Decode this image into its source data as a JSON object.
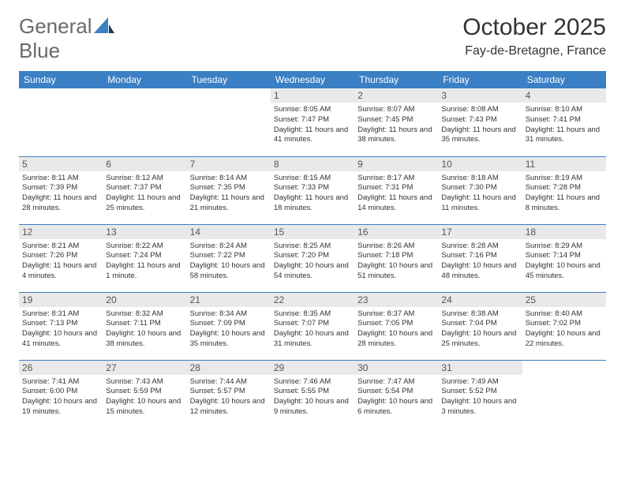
{
  "logo": {
    "word1": "General",
    "word2": "Blue"
  },
  "title": "October 2025",
  "location": "Fay-de-Bretagne, France",
  "colors": {
    "header_bar": "#3b7fc4",
    "daynum_bg": "#e9e9e9",
    "text": "#333333",
    "logo_gray": "#6a6a6a",
    "logo_blue": "#3b7fc4",
    "row_divider": "#3b7fc4"
  },
  "day_headers": [
    "Sunday",
    "Monday",
    "Tuesday",
    "Wednesday",
    "Thursday",
    "Friday",
    "Saturday"
  ],
  "weeks": [
    [
      {
        "n": "",
        "sr": "",
        "ss": "",
        "dl": ""
      },
      {
        "n": "",
        "sr": "",
        "ss": "",
        "dl": ""
      },
      {
        "n": "",
        "sr": "",
        "ss": "",
        "dl": ""
      },
      {
        "n": "1",
        "sr": "Sunrise: 8:05 AM",
        "ss": "Sunset: 7:47 PM",
        "dl": "Daylight: 11 hours and 41 minutes."
      },
      {
        "n": "2",
        "sr": "Sunrise: 8:07 AM",
        "ss": "Sunset: 7:45 PM",
        "dl": "Daylight: 11 hours and 38 minutes."
      },
      {
        "n": "3",
        "sr": "Sunrise: 8:08 AM",
        "ss": "Sunset: 7:43 PM",
        "dl": "Daylight: 11 hours and 35 minutes."
      },
      {
        "n": "4",
        "sr": "Sunrise: 8:10 AM",
        "ss": "Sunset: 7:41 PM",
        "dl": "Daylight: 11 hours and 31 minutes."
      }
    ],
    [
      {
        "n": "5",
        "sr": "Sunrise: 8:11 AM",
        "ss": "Sunset: 7:39 PM",
        "dl": "Daylight: 11 hours and 28 minutes."
      },
      {
        "n": "6",
        "sr": "Sunrise: 8:12 AM",
        "ss": "Sunset: 7:37 PM",
        "dl": "Daylight: 11 hours and 25 minutes."
      },
      {
        "n": "7",
        "sr": "Sunrise: 8:14 AM",
        "ss": "Sunset: 7:35 PM",
        "dl": "Daylight: 11 hours and 21 minutes."
      },
      {
        "n": "8",
        "sr": "Sunrise: 8:15 AM",
        "ss": "Sunset: 7:33 PM",
        "dl": "Daylight: 11 hours and 18 minutes."
      },
      {
        "n": "9",
        "sr": "Sunrise: 8:17 AM",
        "ss": "Sunset: 7:31 PM",
        "dl": "Daylight: 11 hours and 14 minutes."
      },
      {
        "n": "10",
        "sr": "Sunrise: 8:18 AM",
        "ss": "Sunset: 7:30 PM",
        "dl": "Daylight: 11 hours and 11 minutes."
      },
      {
        "n": "11",
        "sr": "Sunrise: 8:19 AM",
        "ss": "Sunset: 7:28 PM",
        "dl": "Daylight: 11 hours and 8 minutes."
      }
    ],
    [
      {
        "n": "12",
        "sr": "Sunrise: 8:21 AM",
        "ss": "Sunset: 7:26 PM",
        "dl": "Daylight: 11 hours and 4 minutes."
      },
      {
        "n": "13",
        "sr": "Sunrise: 8:22 AM",
        "ss": "Sunset: 7:24 PM",
        "dl": "Daylight: 11 hours and 1 minute."
      },
      {
        "n": "14",
        "sr": "Sunrise: 8:24 AM",
        "ss": "Sunset: 7:22 PM",
        "dl": "Daylight: 10 hours and 58 minutes."
      },
      {
        "n": "15",
        "sr": "Sunrise: 8:25 AM",
        "ss": "Sunset: 7:20 PM",
        "dl": "Daylight: 10 hours and 54 minutes."
      },
      {
        "n": "16",
        "sr": "Sunrise: 8:26 AM",
        "ss": "Sunset: 7:18 PM",
        "dl": "Daylight: 10 hours and 51 minutes."
      },
      {
        "n": "17",
        "sr": "Sunrise: 8:28 AM",
        "ss": "Sunset: 7:16 PM",
        "dl": "Daylight: 10 hours and 48 minutes."
      },
      {
        "n": "18",
        "sr": "Sunrise: 8:29 AM",
        "ss": "Sunset: 7:14 PM",
        "dl": "Daylight: 10 hours and 45 minutes."
      }
    ],
    [
      {
        "n": "19",
        "sr": "Sunrise: 8:31 AM",
        "ss": "Sunset: 7:13 PM",
        "dl": "Daylight: 10 hours and 41 minutes."
      },
      {
        "n": "20",
        "sr": "Sunrise: 8:32 AM",
        "ss": "Sunset: 7:11 PM",
        "dl": "Daylight: 10 hours and 38 minutes."
      },
      {
        "n": "21",
        "sr": "Sunrise: 8:34 AM",
        "ss": "Sunset: 7:09 PM",
        "dl": "Daylight: 10 hours and 35 minutes."
      },
      {
        "n": "22",
        "sr": "Sunrise: 8:35 AM",
        "ss": "Sunset: 7:07 PM",
        "dl": "Daylight: 10 hours and 31 minutes."
      },
      {
        "n": "23",
        "sr": "Sunrise: 8:37 AM",
        "ss": "Sunset: 7:05 PM",
        "dl": "Daylight: 10 hours and 28 minutes."
      },
      {
        "n": "24",
        "sr": "Sunrise: 8:38 AM",
        "ss": "Sunset: 7:04 PM",
        "dl": "Daylight: 10 hours and 25 minutes."
      },
      {
        "n": "25",
        "sr": "Sunrise: 8:40 AM",
        "ss": "Sunset: 7:02 PM",
        "dl": "Daylight: 10 hours and 22 minutes."
      }
    ],
    [
      {
        "n": "26",
        "sr": "Sunrise: 7:41 AM",
        "ss": "Sunset: 6:00 PM",
        "dl": "Daylight: 10 hours and 19 minutes."
      },
      {
        "n": "27",
        "sr": "Sunrise: 7:43 AM",
        "ss": "Sunset: 5:59 PM",
        "dl": "Daylight: 10 hours and 15 minutes."
      },
      {
        "n": "28",
        "sr": "Sunrise: 7:44 AM",
        "ss": "Sunset: 5:57 PM",
        "dl": "Daylight: 10 hours and 12 minutes."
      },
      {
        "n": "29",
        "sr": "Sunrise: 7:46 AM",
        "ss": "Sunset: 5:55 PM",
        "dl": "Daylight: 10 hours and 9 minutes."
      },
      {
        "n": "30",
        "sr": "Sunrise: 7:47 AM",
        "ss": "Sunset: 5:54 PM",
        "dl": "Daylight: 10 hours and 6 minutes."
      },
      {
        "n": "31",
        "sr": "Sunrise: 7:49 AM",
        "ss": "Sunset: 5:52 PM",
        "dl": "Daylight: 10 hours and 3 minutes."
      },
      {
        "n": "",
        "sr": "",
        "ss": "",
        "dl": ""
      }
    ]
  ]
}
